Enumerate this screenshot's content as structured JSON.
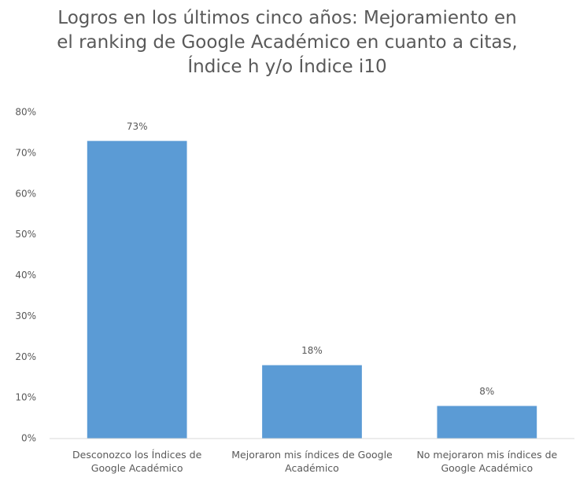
{
  "chart_data": {
    "type": "bar",
    "title": "Logros en los últimos cinco años: Mejoramiento en el ranking de Google Académico en cuanto a citas, Índice h y/o Índice i10",
    "categories": [
      "Desconozco los Índices de Google Académico",
      "Mejoraron mis índices de Google Académico",
      "No mejoraron mis índices de Google Académico"
    ],
    "values": [
      73,
      18,
      8
    ],
    "value_labels": [
      "73%",
      "18%",
      "8%"
    ],
    "color": "#5b9bd5",
    "ylim": [
      0,
      80
    ],
    "yticks": [
      {
        "value": 0,
        "label": "0%"
      },
      {
        "value": 10,
        "label": "10%"
      },
      {
        "value": 20,
        "label": "20%"
      },
      {
        "value": 30,
        "label": "30%"
      },
      {
        "value": 40,
        "label": "40%"
      },
      {
        "value": 50,
        "label": "50%"
      },
      {
        "value": 60,
        "label": "60%"
      },
      {
        "value": 70,
        "label": "70%"
      },
      {
        "value": 80,
        "label": "80%"
      }
    ],
    "grid": false
  }
}
